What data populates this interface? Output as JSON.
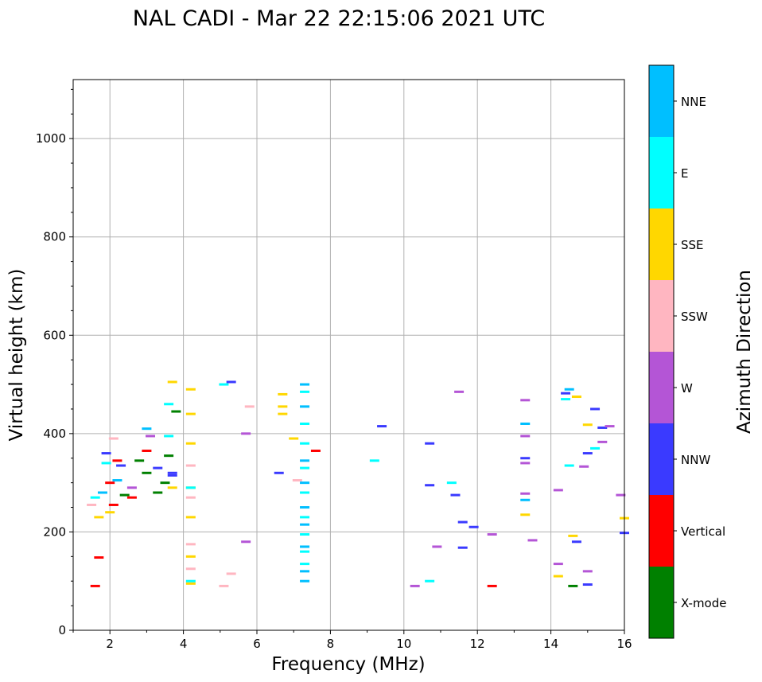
{
  "chart_data": {
    "type": "scatter",
    "title": "NAL CADI - Mar 22 22:15:06 2021 UTC",
    "xlabel": "Frequency (MHz)",
    "ylabel": "Virtual height (km)",
    "xlim": [
      1,
      16
    ],
    "ylim": [
      0,
      1120
    ],
    "xticks": [
      2,
      4,
      6,
      8,
      10,
      12,
      14,
      16
    ],
    "yticks": [
      0,
      200,
      400,
      600,
      800,
      1000
    ],
    "grid": true,
    "colorbar": {
      "label": "Azimuth Direction",
      "categories": [
        "X-mode",
        "Vertical",
        "NNW",
        "W",
        "SSW",
        "SSE",
        "E",
        "NNE"
      ],
      "colors": [
        "#008000",
        "#ff0000",
        "#3a3aff",
        "#b455d6",
        "#ffb6c1",
        "#ffd700",
        "#00ffff",
        "#00bfff"
      ]
    },
    "series": [
      {
        "name": "X-mode",
        "color": "#008000",
        "points": [
          [
            2.8,
            345
          ],
          [
            3.0,
            320
          ],
          [
            3.3,
            280
          ],
          [
            3.5,
            300
          ],
          [
            3.6,
            355
          ],
          [
            3.8,
            445
          ],
          [
            14.6,
            90
          ],
          [
            2.4,
            275
          ]
        ]
      },
      {
        "name": "Vertical",
        "color": "#ff0000",
        "points": [
          [
            1.6,
            90
          ],
          [
            1.7,
            148
          ],
          [
            2.0,
            300
          ],
          [
            2.1,
            255
          ],
          [
            2.2,
            345
          ],
          [
            2.6,
            270
          ],
          [
            3.0,
            365
          ],
          [
            7.6,
            365
          ],
          [
            12.4,
            90
          ]
        ]
      },
      {
        "name": "NNW",
        "color": "#3a3aff",
        "points": [
          [
            1.9,
            360
          ],
          [
            2.3,
            335
          ],
          [
            3.3,
            330
          ],
          [
            3.7,
            320
          ],
          [
            3.7,
            315
          ],
          [
            5.3,
            505
          ],
          [
            6.6,
            320
          ],
          [
            9.4,
            415
          ],
          [
            10.7,
            380
          ],
          [
            10.7,
            295
          ],
          [
            11.4,
            275
          ],
          [
            11.6,
            220
          ],
          [
            11.6,
            168
          ],
          [
            11.9,
            210
          ],
          [
            13.3,
            350
          ],
          [
            14.4,
            482
          ],
          [
            14.7,
            180
          ],
          [
            15.0,
            360
          ],
          [
            15.0,
            93
          ],
          [
            15.2,
            450
          ],
          [
            15.4,
            412
          ],
          [
            16.0,
            198
          ]
        ]
      },
      {
        "name": "W",
        "color": "#b455d6",
        "points": [
          [
            2.6,
            290
          ],
          [
            3.1,
            395
          ],
          [
            5.7,
            400
          ],
          [
            5.7,
            180
          ],
          [
            10.3,
            90
          ],
          [
            10.9,
            170
          ],
          [
            11.5,
            485
          ],
          [
            12.4,
            195
          ],
          [
            13.3,
            468
          ],
          [
            13.3,
            395
          ],
          [
            13.3,
            340
          ],
          [
            13.3,
            278
          ],
          [
            13.5,
            183
          ],
          [
            14.2,
            285
          ],
          [
            14.2,
            135
          ],
          [
            14.9,
            333
          ],
          [
            15.0,
            120
          ],
          [
            15.4,
            383
          ],
          [
            15.6,
            415
          ],
          [
            15.9,
            275
          ]
        ]
      },
      {
        "name": "SSW",
        "color": "#ffb6c1",
        "points": [
          [
            1.5,
            255
          ],
          [
            2.1,
            390
          ],
          [
            4.2,
            335
          ],
          [
            4.2,
            270
          ],
          [
            4.2,
            175
          ],
          [
            4.2,
            125
          ],
          [
            5.1,
            90
          ],
          [
            5.3,
            115
          ],
          [
            5.8,
            455
          ],
          [
            7.1,
            305
          ]
        ]
      },
      {
        "name": "SSE",
        "color": "#ffd700",
        "points": [
          [
            1.7,
            230
          ],
          [
            2.0,
            240
          ],
          [
            3.7,
            290
          ],
          [
            3.7,
            505
          ],
          [
            4.2,
            490
          ],
          [
            4.2,
            440
          ],
          [
            4.2,
            380
          ],
          [
            4.2,
            290
          ],
          [
            4.2,
            230
          ],
          [
            4.2,
            150
          ],
          [
            4.2,
            95
          ],
          [
            6.7,
            480
          ],
          [
            6.7,
            455
          ],
          [
            6.7,
            440
          ],
          [
            7.0,
            390
          ],
          [
            13.3,
            235
          ],
          [
            14.2,
            110
          ],
          [
            14.6,
            192
          ],
          [
            14.7,
            475
          ],
          [
            15.0,
            418
          ],
          [
            16.0,
            228
          ]
        ]
      },
      {
        "name": "E",
        "color": "#00ffff",
        "points": [
          [
            1.6,
            270
          ],
          [
            1.9,
            340
          ],
          [
            3.6,
            460
          ],
          [
            3.6,
            395
          ],
          [
            4.2,
            100
          ],
          [
            4.2,
            290
          ],
          [
            5.1,
            500
          ],
          [
            7.3,
            485
          ],
          [
            7.3,
            420
          ],
          [
            7.3,
            380
          ],
          [
            7.3,
            330
          ],
          [
            7.3,
            280
          ],
          [
            7.3,
            230
          ],
          [
            7.3,
            195
          ],
          [
            7.3,
            160
          ],
          [
            7.3,
            135
          ],
          [
            9.2,
            345
          ],
          [
            10.7,
            100
          ],
          [
            11.3,
            300
          ],
          [
            14.5,
            335
          ],
          [
            14.4,
            470
          ],
          [
            15.2,
            370
          ]
        ]
      },
      {
        "name": "NNE",
        "color": "#00bfff",
        "points": [
          [
            1.8,
            280
          ],
          [
            2.2,
            305
          ],
          [
            3.0,
            410
          ],
          [
            7.3,
            500
          ],
          [
            7.3,
            455
          ],
          [
            7.3,
            345
          ],
          [
            7.3,
            300
          ],
          [
            7.3,
            250
          ],
          [
            7.3,
            215
          ],
          [
            7.3,
            170
          ],
          [
            7.3,
            120
          ],
          [
            7.3,
            100
          ],
          [
            13.3,
            420
          ],
          [
            13.3,
            265
          ],
          [
            14.5,
            490
          ]
        ]
      }
    ]
  }
}
